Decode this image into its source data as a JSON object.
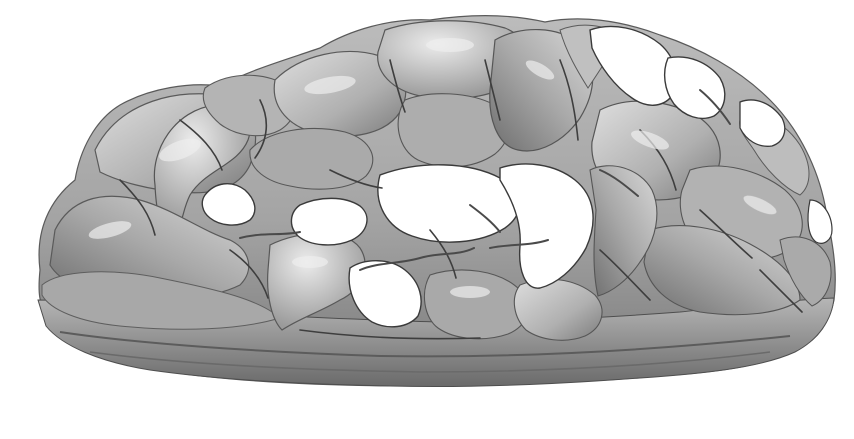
{
  "scene": {
    "subject": "3d-surface",
    "colors": {
      "background": "#ffffff",
      "surface_dark": "#2e2e2e",
      "surface_mid": "#8e8e8e",
      "surface_light": "#d4d4d4",
      "highlight": "#ececec"
    }
  }
}
